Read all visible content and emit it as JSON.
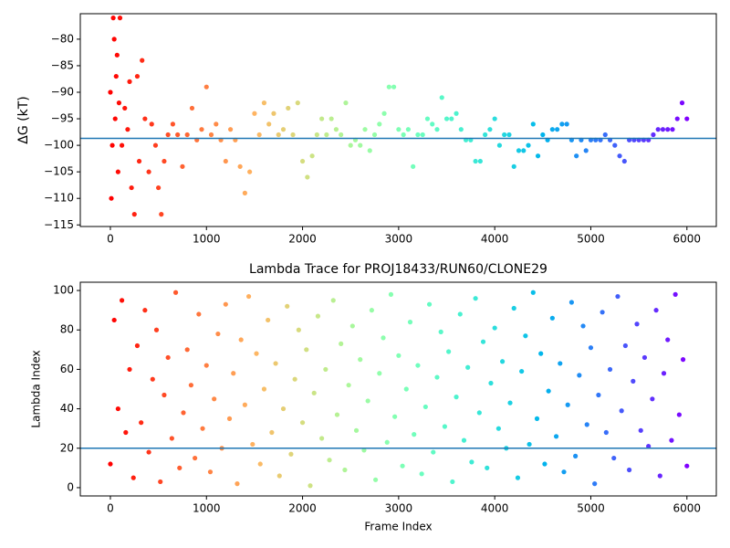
{
  "chart_data": [
    {
      "type": "scatter",
      "ylabel": "ΔG (kT)",
      "colormap": "rainbow_r",
      "hline": -98.7,
      "hline_color": "#1f77b4",
      "xlim": [
        -313,
        6306
      ],
      "ylim": [
        -115.3,
        -75.2
      ],
      "xticks": [
        0,
        1000,
        2000,
        3000,
        4000,
        5000,
        6000
      ],
      "yticks": [
        {
          "value": -115,
          "label": "−115"
        },
        {
          "value": -110,
          "label": "−110"
        },
        {
          "value": -105,
          "label": "−105"
        },
        {
          "value": -100,
          "label": "−100"
        },
        {
          "value": -95,
          "label": "−95"
        },
        {
          "value": -90,
          "label": "−90"
        },
        {
          "value": -85,
          "label": "−85"
        },
        {
          "value": -80,
          "label": "−80"
        }
      ],
      "x": [
        0,
        10,
        20,
        30,
        40,
        50,
        60,
        70,
        80,
        90,
        100,
        120,
        150,
        180,
        200,
        220,
        250,
        280,
        300,
        330,
        360,
        400,
        430,
        470,
        500,
        530,
        560,
        600,
        650,
        700,
        750,
        800,
        850,
        900,
        950,
        1000,
        1050,
        1100,
        1150,
        1200,
        1250,
        1300,
        1350,
        1400,
        1450,
        1500,
        1550,
        1600,
        1650,
        1700,
        1750,
        1800,
        1850,
        1900,
        1950,
        2000,
        2050,
        2100,
        2150,
        2200,
        2250,
        2300,
        2350,
        2400,
        2450,
        2500,
        2550,
        2600,
        2650,
        2700,
        2750,
        2800,
        2850,
        2900,
        2950,
        3000,
        3050,
        3100,
        3150,
        3200,
        3250,
        3300,
        3350,
        3400,
        3450,
        3500,
        3550,
        3600,
        3650,
        3700,
        3750,
        3800,
        3850,
        3900,
        3950,
        4000,
        4050,
        4100,
        4150,
        4200,
        4250,
        4300,
        4350,
        4400,
        4450,
        4500,
        4550,
        4600,
        4650,
        4700,
        4750,
        4800,
        4850,
        4900,
        4950,
        5000,
        5050,
        5100,
        5150,
        5200,
        5250,
        5300,
        5350,
        5400,
        5450,
        5500,
        5550,
        5600,
        5650,
        5700,
        5750,
        5800,
        5850,
        5900,
        5950,
        6000
      ],
      "values": [
        -90,
        -110,
        -100,
        -76,
        -80,
        -95,
        -87,
        -83,
        -105,
        -92,
        -76,
        -100,
        -93,
        -97,
        -88,
        -108,
        -113,
        -87,
        -103,
        -84,
        -95,
        -105,
        -96,
        -100,
        -108,
        -113,
        -103,
        -98,
        -96,
        -98,
        -104,
        -98,
        -93,
        -99,
        -97,
        -89,
        -98,
        -96,
        -99,
        -103,
        -97,
        -99,
        -104,
        -109,
        -105,
        -94,
        -98,
        -92,
        -96,
        -94,
        -98,
        -97,
        -93,
        -98,
        -92,
        -103,
        -106,
        -102,
        -98,
        -95,
        -98,
        -95,
        -97,
        -98,
        -92,
        -100,
        -99,
        -100,
        -97,
        -101,
        -98,
        -96,
        -94,
        -89,
        -89,
        -97,
        -98,
        -97,
        -104,
        -98,
        -98,
        -95,
        -96,
        -97,
        -91,
        -95,
        -95,
        -94,
        -97,
        -99,
        -99,
        -103,
        -103,
        -98,
        -97,
        -95,
        -100,
        -98,
        -98,
        -104,
        -101,
        -101,
        -100,
        -96,
        -102,
        -98,
        -99,
        -97,
        -97,
        -96,
        -96,
        -99,
        -102,
        -99,
        -101,
        -99,
        -99,
        -99,
        -98,
        -99,
        -100,
        -102,
        -103,
        -99,
        -99,
        -99,
        -99,
        -99,
        -98,
        -97,
        -97,
        -97,
        -97,
        -95,
        -92,
        -95
      ]
    },
    {
      "type": "scatter",
      "title": "Lambda Trace for PROJ18433/RUN60/CLONE29",
      "xlabel": "Frame Index",
      "ylabel": "Lambda Index",
      "colormap": "rainbow_r",
      "hline": 20,
      "hline_color": "#1f77b4",
      "xlim": [
        -313,
        6306
      ],
      "ylim": [
        -4.2,
        104.2
      ],
      "xticks": [
        0,
        1000,
        2000,
        3000,
        4000,
        5000,
        6000
      ],
      "yticks": [
        0,
        20,
        40,
        60,
        80,
        100
      ],
      "x": [
        0,
        40,
        80,
        120,
        160,
        200,
        240,
        280,
        320,
        360,
        400,
        440,
        480,
        520,
        560,
        600,
        640,
        680,
        720,
        760,
        800,
        840,
        880,
        920,
        960,
        1000,
        1040,
        1080,
        1120,
        1160,
        1200,
        1240,
        1280,
        1320,
        1360,
        1400,
        1440,
        1480,
        1520,
        1560,
        1600,
        1640,
        1680,
        1720,
        1760,
        1800,
        1840,
        1880,
        1920,
        1960,
        2000,
        2040,
        2080,
        2120,
        2160,
        2200,
        2240,
        2280,
        2320,
        2360,
        2400,
        2440,
        2480,
        2520,
        2560,
        2600,
        2640,
        2680,
        2720,
        2760,
        2800,
        2840,
        2880,
        2920,
        2960,
        3000,
        3040,
        3080,
        3120,
        3160,
        3200,
        3240,
        3280,
        3320,
        3360,
        3400,
        3440,
        3480,
        3520,
        3560,
        3600,
        3640,
        3680,
        3720,
        3760,
        3800,
        3840,
        3880,
        3920,
        3960,
        4000,
        4040,
        4080,
        4120,
        4160,
        4200,
        4240,
        4280,
        4320,
        4360,
        4400,
        4440,
        4480,
        4520,
        4560,
        4600,
        4640,
        4680,
        4720,
        4760,
        4800,
        4840,
        4880,
        4920,
        4960,
        5000,
        5040,
        5080,
        5120,
        5160,
        5200,
        5240,
        5280,
        5320,
        5360,
        5400,
        5440,
        5480,
        5520,
        5560,
        5600,
        5640,
        5680,
        5720,
        5760,
        5800,
        5840,
        5880,
        5920,
        5960,
        6000
      ],
      "values": [
        12,
        85,
        40,
        95,
        28,
        60,
        5,
        72,
        33,
        90,
        18,
        55,
        80,
        3,
        47,
        66,
        25,
        99,
        10,
        38,
        70,
        52,
        15,
        88,
        30,
        62,
        8,
        45,
        78,
        20,
        93,
        35,
        58,
        2,
        75,
        42,
        97,
        22,
        68,
        12,
        50,
        85,
        28,
        63,
        6,
        40,
        92,
        17,
        55,
        80,
        33,
        70,
        1,
        48,
        87,
        25,
        60,
        14,
        95,
        37,
        73,
        9,
        52,
        82,
        29,
        65,
        19,
        44,
        90,
        4,
        58,
        76,
        23,
        98,
        36,
        67,
        11,
        50,
        84,
        27,
        62,
        7,
        41,
        93,
        18,
        56,
        79,
        31,
        69,
        3,
        46,
        88,
        24,
        61,
        13,
        96,
        38,
        74,
        10,
        53,
        81,
        30,
        64,
        20,
        43,
        91,
        5,
        59,
        77,
        22,
        99,
        35,
        68,
        12,
        49,
        86,
        26,
        63,
        8,
        42,
        94,
        16,
        57,
        82,
        32,
        71,
        2,
        47,
        89,
        28,
        60,
        15,
        97,
        39,
        72,
        9,
        54,
        83,
        29,
        66,
        21,
        45,
        90,
        6,
        58,
        75,
        24,
        98,
        37,
        65,
        11
      ]
    }
  ]
}
